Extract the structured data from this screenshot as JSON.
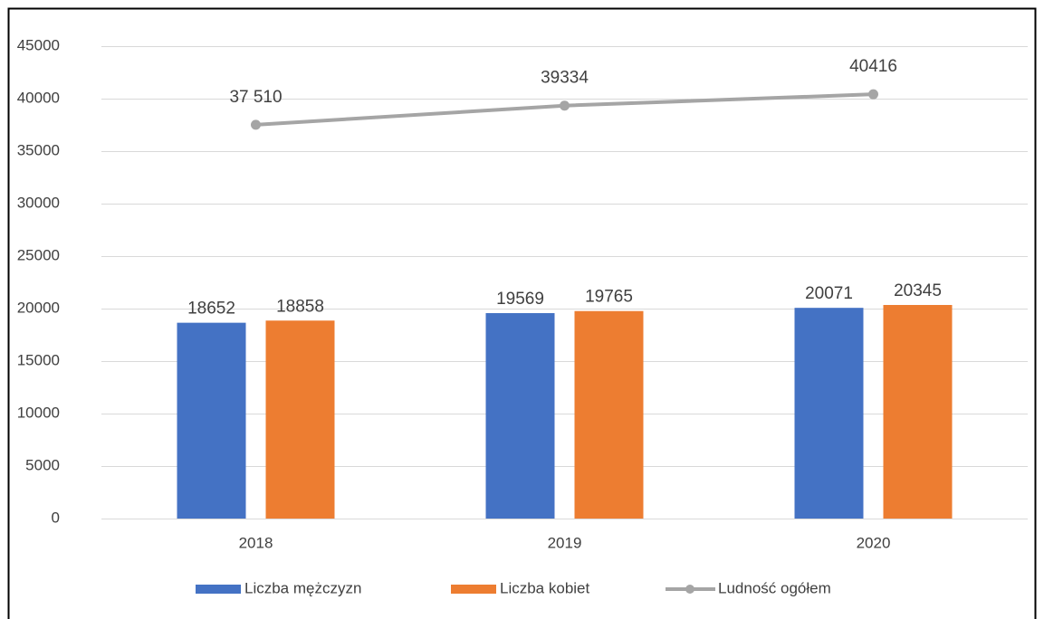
{
  "chart_data": {
    "type": "combo",
    "categories": [
      "2018",
      "2019",
      "2020"
    ],
    "series": [
      {
        "name": "Liczba mężczyzn",
        "type": "bar",
        "color": "#4472c4",
        "values": [
          18652,
          19569,
          20071
        ]
      },
      {
        "name": "Liczba kobiet",
        "type": "bar",
        "color": "#ed7d31",
        "values": [
          18858,
          19765,
          20345
        ]
      },
      {
        "name": "Ludność ogółem",
        "type": "line",
        "color": "#a5a5a5",
        "values": [
          37510,
          39334,
          40416
        ],
        "value_labels": [
          "37 510",
          "39334",
          "40416"
        ]
      }
    ],
    "ylim": [
      0,
      45000
    ],
    "yticks": [
      0,
      5000,
      10000,
      15000,
      20000,
      25000,
      30000,
      35000,
      40000,
      45000
    ],
    "grid": true,
    "legend": "bottom"
  }
}
